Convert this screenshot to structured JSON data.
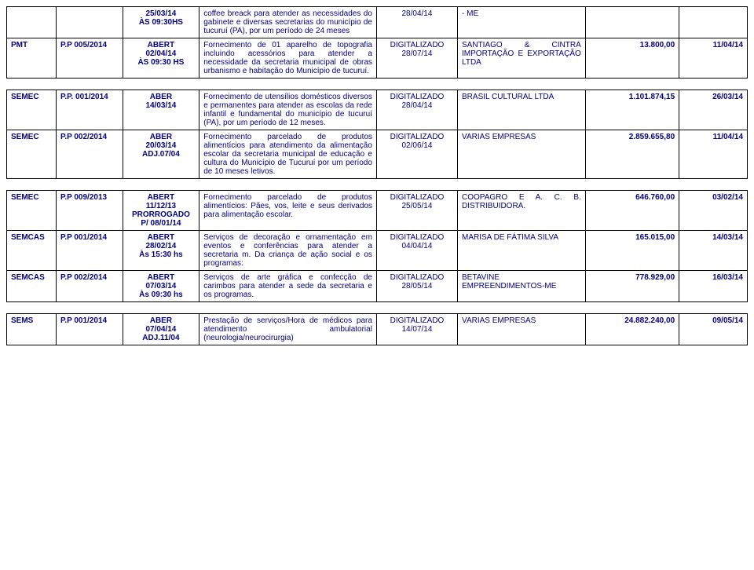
{
  "rows": [
    {
      "c1": "",
      "c2": "",
      "c3": "25/03/14\nÀS 09:30HS",
      "c4": "coffee breack para atender as necessidades do gabinete e diversas secretarias do município de tucuruí (PA), por um período de 24 meses",
      "c5": "28/04/14",
      "c6": "- ME",
      "c7": "",
      "c8": ""
    },
    {
      "c1": "PMT",
      "c2": "P.P 005/2014",
      "c3": "ABERT\n02/04/14\nÀS 09:30 HS",
      "c4": "Fornecimento de 01 aparelho de topografia incluindo acessórios para atender a necessidade da secretaria municipal de obras urbanismo e habitação do Município de tucuruí.",
      "c5": "DIGITALIZADO\n28/07/14",
      "c6": "SANTIAGO & CINTRA IMPORTAÇÃO E EXPORTAÇÃO LTDA",
      "c7": "13.800,00",
      "c8": "11/04/14"
    }
  ],
  "rows2": [
    {
      "c1": "SEMEC",
      "c2": "P.P. 001/2014",
      "c3": "ABER\n14/03/14",
      "c4": "Fornecimento de utensílios domésticos diversos e permanentes para atender as escolas da rede infantil e fundamental do município de tucuruí (PA), por um período de 12 meses.",
      "c5": "DIGITALIZADO\n28/04/14",
      "c6": "BRASIL CULTURAL LTDA",
      "c7": "1.101.874,15",
      "c8": "26/03/14"
    },
    {
      "c1": "SEMEC",
      "c2": "P.P 002/2014",
      "c3": "ABER\n20/03/14\nADJ.07/04",
      "c4": "Fornecimento parcelado de produtos alimentícios para atendimento da alimentação escolar da secretaria municipal de educação e cultura do Município de Tucuruí por um período de 10 meses letivos.",
      "c5": "DIGITALIZADO\n02/06/14",
      "c6": "VARIAS EMPRESAS",
      "c7": "2.859.655,80",
      "c8": "11/04/14"
    }
  ],
  "rows3": [
    {
      "c1": "SEMEC",
      "c2": "P.P 009/2013",
      "c3": "ABERT\n11/12/13\nPRORROGADO\nP/ 08/01/14",
      "c4": "Fornecimento parcelado de produtos alimentícios: Pães, vos, leite e seus derivados para alimentação escolar.",
      "c5": "DIGITALIZADO\n25/05/14",
      "c6": "COOPAGRO E A. C. B. DISTRIBUIDORA.",
      "c7": "646.760,00",
      "c8": "03/02/14"
    },
    {
      "c1": "SEMCAS",
      "c2": "P.P 001/2014",
      "c3": "ABERT\n28/02/14\nÀs 15:30 hs",
      "c4": "Serviços de decoração e ornamentação em eventos e conferências para atender a secretaria m. Da criança de ação social e os programas:",
      "c5": "DIGITALIZADO\n04/04/14",
      "c6": "MARISA DE FÁTIMA SILVA",
      "c7": "165.015,00",
      "c8": "14/03/14"
    },
    {
      "c1": "SEMCAS",
      "c2": "P.P 002/2014",
      "c3": "ABERT\n07/03/14\nÀs 09:30 hs",
      "c4": "Serviços de arte gráfica e confecção de carimbos para atender a sede da secretaria e os programas.",
      "c5": "DIGITALIZADO\n28/05/14",
      "c6": "BETAVINE EMPREENDIMENTOS-ME",
      "c7": "778.929,00",
      "c8": "16/03/14"
    }
  ],
  "rows4": [
    {
      "c1": "SEMS",
      "c2": "P.P 001/2014",
      "c3": "ABER\n07/04/14\nADJ.11/04",
      "c4": "Prestação de serviços/Hora de médicos para atendimento ambulatorial (neurologia/neurocirurgia)",
      "c5": "DIGITALIZADO\n14/07/14",
      "c6": "VARIAS EMPRESAS",
      "c7": "24.882.240,00",
      "c8": "09/05/14"
    }
  ]
}
